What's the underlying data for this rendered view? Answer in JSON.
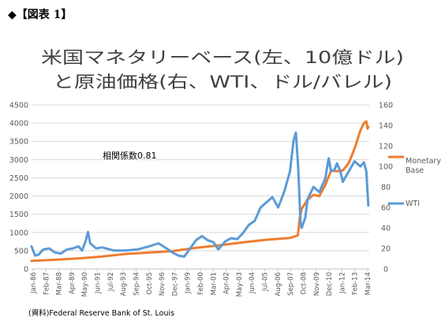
{
  "header": "◆【図表 1】",
  "source": "(資料)Federal Reserve Bank of St. Louis",
  "chart_data": {
    "type": "line",
    "title_line1": "米国マネタリーベース(左、10億ドル)",
    "title_line2": "と原油価格(右、WTI、ドル/バレル)",
    "annotation": "相関係数0.81",
    "left_axis": {
      "ylim": [
        0,
        4500
      ],
      "ticks": [
        0,
        500,
        1000,
        1500,
        2000,
        2500,
        3000,
        3500,
        4000,
        4500
      ]
    },
    "right_axis": {
      "ylim": [
        0,
        160
      ],
      "ticks": [
        0,
        20,
        40,
        60,
        80,
        100,
        120,
        140,
        160
      ]
    },
    "x_labels": [
      "Jan-86",
      "Feb-87",
      "Mar-88",
      "Apr-89",
      "May-90",
      "Jun-91",
      "Jul-92",
      "Aug-93",
      "Sep-94",
      "Oct-95",
      "Nov-96",
      "Dec-97",
      "Jan-99",
      "Feb-00",
      "Mar-01",
      "Apr-02",
      "May-03",
      "Jun-04",
      "Jul-05",
      "Aug-06",
      "Sep-07",
      "Oct-08",
      "Nov-09",
      "Dec-10",
      "Jan-12",
      "Feb-13",
      "Mar-14"
    ],
    "x_range": [
      1986.0,
      2014.75
    ],
    "colors": {
      "monetary_base": "#ed7d31",
      "wti": "#5b9bd5",
      "grid": "#d9d9d9",
      "axis_text": "#595959"
    },
    "series": [
      {
        "name": "Monetary Base",
        "axis": "left",
        "color": "#ed7d31",
        "x": [
          1986.0,
          1988.0,
          1990.0,
          1992.0,
          1994.0,
          1996.0,
          1998.0,
          2000.0,
          2002.0,
          2004.0,
          2006.0,
          2008.0,
          2008.67,
          2008.83,
          2009.0,
          2009.5,
          2010.0,
          2010.5,
          2011.0,
          2011.5,
          2012.0,
          2012.5,
          2013.0,
          2013.5,
          2014.0,
          2014.3,
          2014.5,
          2014.6,
          2014.67
        ],
        "values": [
          220,
          250,
          290,
          340,
          410,
          450,
          490,
          580,
          650,
          730,
          800,
          850,
          920,
          1400,
          1650,
          1900,
          2030,
          2000,
          2300,
          2700,
          2680,
          2700,
          2900,
          3300,
          3800,
          4000,
          4050,
          3850,
          3900
        ]
      },
      {
        "name": "WTI",
        "axis": "right",
        "color": "#5b9bd5",
        "x": [
          1986.0,
          1986.3,
          1986.6,
          1987.0,
          1987.5,
          1988.0,
          1988.5,
          1989.0,
          1989.5,
          1990.0,
          1990.3,
          1990.6,
          1990.8,
          1991.0,
          1991.5,
          1992.0,
          1993.0,
          1994.0,
          1995.0,
          1996.0,
          1996.8,
          1997.5,
          1998.0,
          1998.5,
          1999.0,
          1999.5,
          2000.0,
          2000.5,
          2001.0,
          2001.5,
          2001.9,
          2002.5,
          2003.0,
          2003.5,
          2004.0,
          2004.5,
          2005.0,
          2005.5,
          2006.0,
          2006.5,
          2007.0,
          2007.5,
          2008.0,
          2008.3,
          2008.5,
          2008.7,
          2008.9,
          2009.0,
          2009.3,
          2009.5,
          2010.0,
          2010.5,
          2011.0,
          2011.3,
          2011.5,
          2011.8,
          2012.0,
          2012.3,
          2012.5,
          2013.0,
          2013.5,
          2014.0,
          2014.3,
          2014.5,
          2014.67
        ],
        "values": [
          22,
          13,
          14,
          19,
          20,
          16,
          15,
          19,
          20,
          22,
          18,
          27,
          36,
          25,
          20,
          21,
          18,
          18,
          19,
          22,
          25,
          20,
          16,
          13,
          12,
          20,
          28,
          32,
          28,
          26,
          19,
          27,
          30,
          29,
          35,
          43,
          47,
          60,
          65,
          70,
          60,
          75,
          95,
          125,
          133,
          100,
          45,
          40,
          50,
          68,
          80,
          75,
          88,
          108,
          95,
          97,
          103,
          95,
          85,
          95,
          105,
          100,
          104,
          95,
          62
        ]
      }
    ]
  }
}
